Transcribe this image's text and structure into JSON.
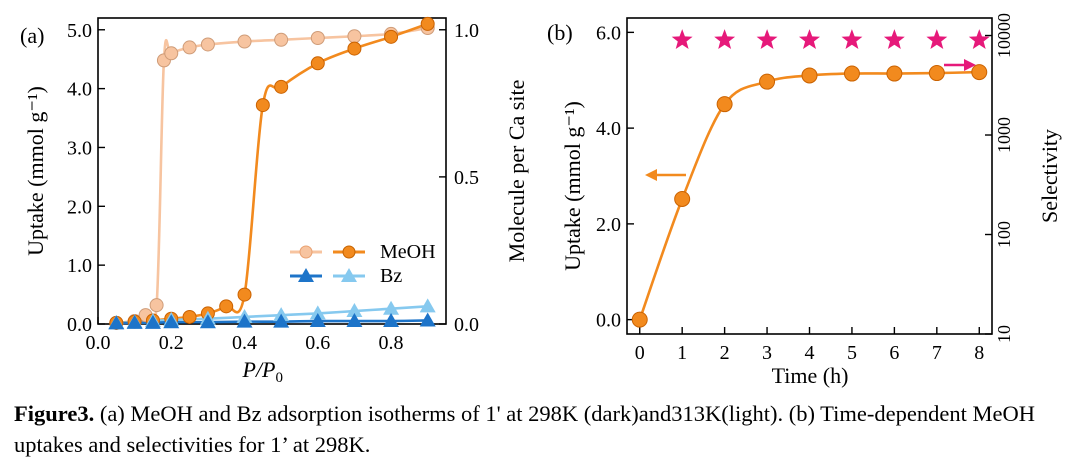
{
  "chart_data": [
    {
      "type": "scatter",
      "panel_label": "(a)",
      "xlabel_main": "P",
      "xlabel_frac": "/P",
      "xlabel_sub": "0",
      "ylabel": "Uptake (mmol g⁻¹)",
      "y2label": "Molecule per Ca site",
      "xlim": [
        0.0,
        0.95
      ],
      "ylim": [
        0.0,
        5.2
      ],
      "y2lim": [
        0.0,
        1.04
      ],
      "xticks": [
        "0.0",
        "0.2",
        "0.4",
        "0.6",
        "0.8"
      ],
      "yticks": [
        "0.0",
        "1.0",
        "2.0",
        "3.0",
        "4.0",
        "5.0"
      ],
      "y2ticks": [
        "0.0",
        "0.5",
        "1.0"
      ],
      "legend": [
        {
          "name": "MeOH",
          "light_color": "#f7c4a0",
          "dark_color": "#f28a1e",
          "marker": "circle"
        },
        {
          "name": "Bz",
          "light_color": "#86c9ef",
          "dark_color": "#1d74c9",
          "marker": "triangle"
        }
      ],
      "series": [
        {
          "name": "MeOH 313K (light)",
          "color": "#f7c4a0",
          "marker": "circle",
          "x": [
            0.05,
            0.1,
            0.13,
            0.16,
            0.18,
            0.2,
            0.25,
            0.3,
            0.4,
            0.5,
            0.6,
            0.7,
            0.8,
            0.9
          ],
          "y": [
            0.02,
            0.05,
            0.15,
            0.32,
            4.48,
            4.6,
            4.7,
            4.75,
            4.8,
            4.83,
            4.86,
            4.89,
            4.93,
            5.03
          ]
        },
        {
          "name": "MeOH 298K (dark)",
          "color": "#f28a1e",
          "marker": "circle",
          "x": [
            0.05,
            0.1,
            0.15,
            0.2,
            0.25,
            0.3,
            0.35,
            0.4,
            0.45,
            0.5,
            0.6,
            0.7,
            0.8,
            0.9
          ],
          "y": [
            0.02,
            0.04,
            0.06,
            0.09,
            0.12,
            0.18,
            0.3,
            0.5,
            3.72,
            4.03,
            4.43,
            4.68,
            4.88,
            5.1
          ]
        },
        {
          "name": "Bz 313K (light)",
          "color": "#86c9ef",
          "marker": "triangle",
          "x": [
            0.05,
            0.1,
            0.15,
            0.2,
            0.3,
            0.4,
            0.5,
            0.6,
            0.7,
            0.8,
            0.9
          ],
          "y": [
            0.02,
            0.03,
            0.05,
            0.07,
            0.09,
            0.12,
            0.15,
            0.18,
            0.22,
            0.26,
            0.3
          ]
        },
        {
          "name": "Bz 298K (dark)",
          "color": "#1d74c9",
          "marker": "triangle",
          "x": [
            0.05,
            0.1,
            0.15,
            0.2,
            0.3,
            0.4,
            0.5,
            0.6,
            0.7,
            0.8,
            0.9
          ],
          "y": [
            0.01,
            0.02,
            0.02,
            0.03,
            0.03,
            0.04,
            0.04,
            0.05,
            0.05,
            0.05,
            0.06
          ]
        }
      ]
    },
    {
      "type": "scatter",
      "panel_label": "(b)",
      "xlabel": "Time (h)",
      "ylabel": "Uptake (mmol g⁻¹)",
      "y2label": "Selectivity",
      "xlim": [
        -0.3,
        8.3
      ],
      "ylim": [
        -0.3,
        6.3
      ],
      "y2lim_log": [
        10,
        15000
      ],
      "xticks": [
        "0",
        "1",
        "2",
        "3",
        "4",
        "5",
        "6",
        "7",
        "8"
      ],
      "yticks": [
        "0.0",
        "2.0",
        "4.0",
        "6.0"
      ],
      "y2ticks": [
        "10",
        "100",
        "1000",
        "10000"
      ],
      "series": [
        {
          "name": "MeOH uptake",
          "color": "#f28a1e",
          "marker": "circle",
          "axis": "left",
          "x": [
            0,
            1,
            2,
            3,
            4,
            5,
            6,
            7,
            8
          ],
          "y": [
            0.0,
            2.52,
            4.5,
            4.97,
            5.1,
            5.14,
            5.14,
            5.15,
            5.17
          ]
        },
        {
          "name": "Selectivity",
          "color": "#e6197a",
          "marker": "star",
          "axis": "right",
          "x": [
            1,
            2,
            3,
            4,
            5,
            6,
            7,
            8
          ],
          "y": [
            9000,
            9000,
            9000,
            9000,
            9000,
            9000,
            9000,
            9000
          ]
        }
      ]
    }
  ],
  "caption": {
    "label": "Figure3.",
    "text": " (a) MeOH and Bz adsorption isotherms of 1' at 298K (dark)and313K(light). (b) Time-dependent MeOH uptakes and selectivities for 1’ at 298K."
  }
}
